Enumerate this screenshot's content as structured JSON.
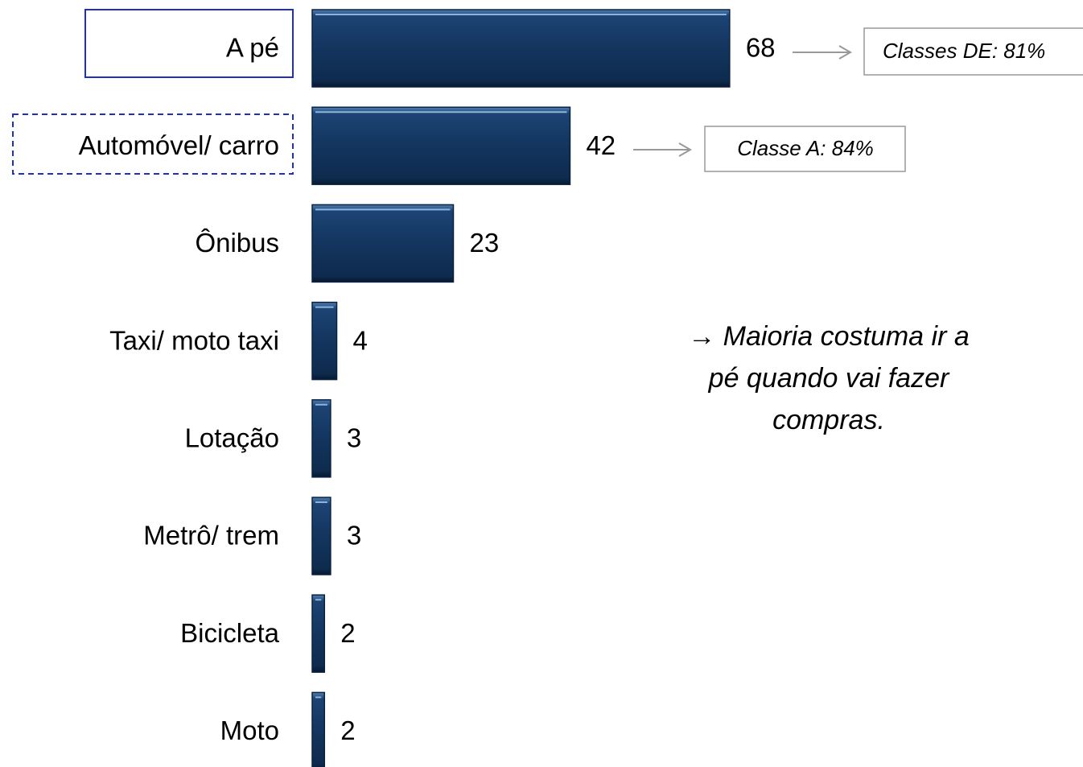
{
  "chart_data": {
    "type": "bar",
    "orientation": "horizontal",
    "categories": [
      "A pé",
      "Automóvel/ carro",
      "Ônibus",
      "Taxi/ moto taxi",
      "Lotação",
      "Metrô/ trem",
      "Bicicleta",
      "Moto"
    ],
    "values": [
      68,
      42,
      23,
      4,
      3,
      3,
      2,
      2
    ],
    "color": "#14365f",
    "annotations": [
      "Classes DE: 81%",
      "Classe A: 84%"
    ],
    "note": [
      "→ Maioria costuma ir a",
      "pé quando vai fazer",
      "compras."
    ]
  }
}
